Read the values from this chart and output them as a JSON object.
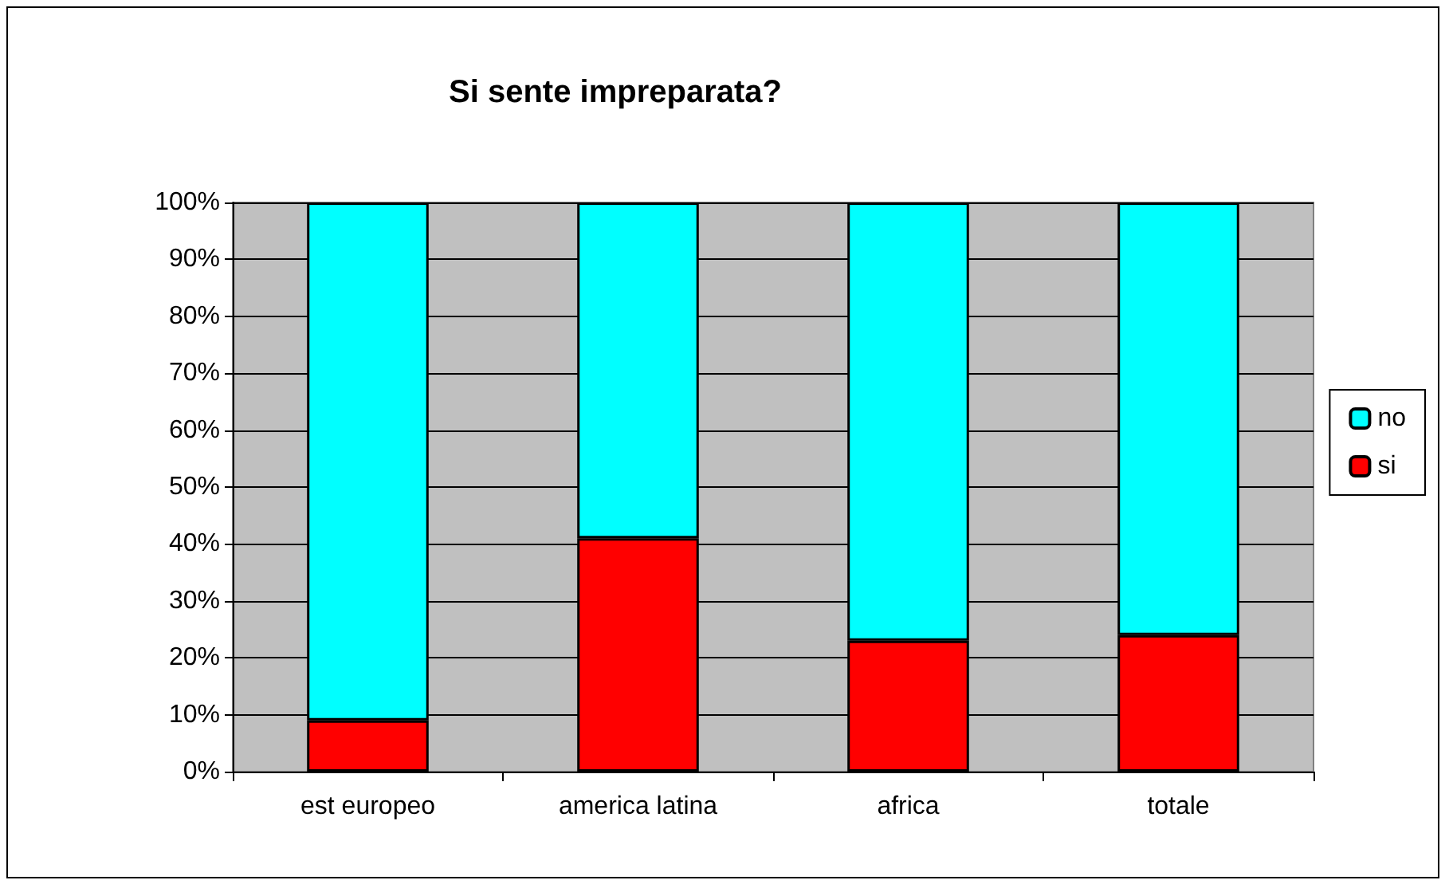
{
  "chart_data": {
    "type": "bar",
    "title": "Si sente impreparata?",
    "stacked": true,
    "categories": [
      "est europeo",
      "america latina",
      "africa",
      "totale"
    ],
    "series": [
      {
        "name": "si",
        "color": "#ff0000",
        "values": [
          9,
          41,
          23,
          24
        ]
      },
      {
        "name": "no",
        "color": "#00ffff",
        "values": [
          91,
          59,
          77,
          76
        ]
      }
    ],
    "ylim": [
      0,
      100
    ],
    "yticks": [
      {
        "value": 0,
        "label": "0%"
      },
      {
        "value": 10,
        "label": "10%"
      },
      {
        "value": 20,
        "label": "20%"
      },
      {
        "value": 30,
        "label": "30%"
      },
      {
        "value": 40,
        "label": "40%"
      },
      {
        "value": 50,
        "label": "50%"
      },
      {
        "value": 60,
        "label": "60%"
      },
      {
        "value": 70,
        "label": "70%"
      },
      {
        "value": 80,
        "label": "80%"
      },
      {
        "value": 90,
        "label": "90%"
      },
      {
        "value": 100,
        "label": "100%"
      }
    ],
    "grid": "y",
    "legend": "right"
  }
}
